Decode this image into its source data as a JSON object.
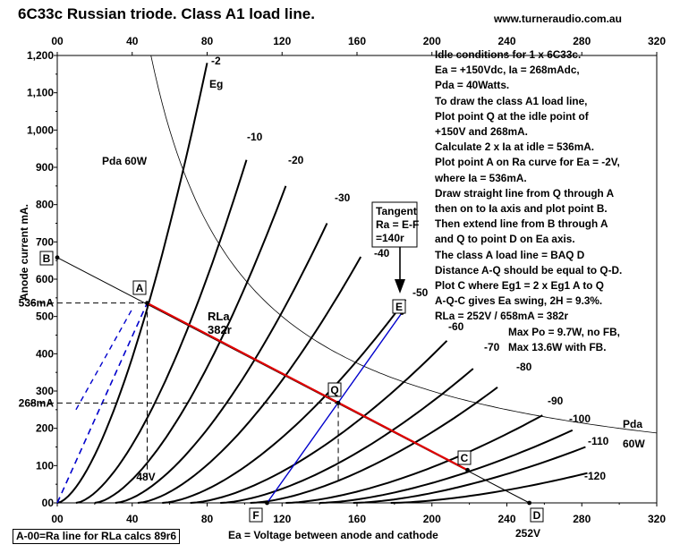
{
  "title": "6C33c Russian triode. Class A1 load line.",
  "website": "www.turneraudio.com.au",
  "footer_box": "A-00=Ra line for RLa calcs 89r6",
  "notes": [
    "Idle conditions for 1 x 6C33c.",
    "Ea = +150Vdc, Ia = 268mAdc,",
    "Pda = 40Watts.",
    "To draw the class A1 load line,",
    "Plot point Q at the idle point of",
    "+150V and 268mA.",
    "Calculate 2 x Ia at idle = 536mA.",
    "Plot point A on Ra curve for Ea = -2V,",
    "where Ia = 536mA.",
    "Draw straight line from Q through A",
    "then on to Ia axis and plot point B.",
    "Then extend line from B through A",
    "and Q to point D on Ea axis.",
    "The class A load line = BAQ D",
    "Distance A-Q should be equal to Q-D.",
    "Plot C where Eg1 = 2 x Eg1 A to Q",
    "A-Q-C gives Ea swing, 2H = 9.3%.",
    "RLa = 252V / 658mA = 382r",
    "Max Po = 9.7W, no FB,",
    "Max 13.6W with FB."
  ],
  "chart_data": {
    "type": "line",
    "title": "6C33c Russian triode. Class A1 load line.",
    "xlabel": "Ea = Voltage between anode and cathode",
    "ylabel": "Anode current mA.",
    "xlim": [
      0,
      320
    ],
    "ylim": [
      0,
      1200
    ],
    "x_ticks": [
      "0",
      "40",
      "80",
      "120",
      "160",
      "200",
      "240",
      "280",
      "320"
    ],
    "x_ticks_bottom": [
      "00",
      "40",
      "80",
      "120",
      "160",
      "200",
      "240",
      "280",
      "320"
    ],
    "x_ticks_top": [
      "00",
      "40",
      "80",
      "120",
      "160",
      "200",
      "240",
      "280",
      "320"
    ],
    "y_ticks": [
      "00",
      "100",
      "200",
      "300",
      "400",
      "500",
      "600",
      "700",
      "800",
      "900",
      "1,000",
      "1,100",
      "1,200"
    ],
    "grid": false,
    "grid_curves": [
      {
        "name": "-2",
        "x0": 0,
        "xe": 80
      },
      {
        "name": "-10",
        "x0": 10,
        "xe": 101
      },
      {
        "name": "-20",
        "x0": 20,
        "xe": 122
      },
      {
        "name": "-30",
        "x0": 31,
        "xe": 144
      },
      {
        "name": "-40",
        "x0": 43,
        "xe": 162
      },
      {
        "name": "-50",
        "x0": 56,
        "xe": 186
      },
      {
        "name": "-60",
        "x0": 71,
        "xe": 208
      },
      {
        "name": "-70",
        "x0": 87,
        "xe": 222
      },
      {
        "name": "-80",
        "x0": 103,
        "xe": 235
      },
      {
        "name": "-90",
        "x0": 122,
        "xe": 259
      },
      {
        "name": "-100",
        "x0": 140,
        "xe": 275
      },
      {
        "name": "-110",
        "x0": 158,
        "xe": 282
      },
      {
        "name": "-120",
        "x0": 178,
        "xe": 283
      }
    ],
    "curve_label_eg": "Eg",
    "power_curve": {
      "watts": 60,
      "label_top": "Pda    60W",
      "label_pda": "Pda",
      "label_w": "60W"
    },
    "load_line": {
      "name": "RLa",
      "value": "382r",
      "from": [
        0,
        658
      ],
      "to": [
        252,
        0
      ]
    },
    "points": [
      {
        "label": "A",
        "x": 48,
        "y": 536
      },
      {
        "label": "Q",
        "x": 150,
        "y": 268
      },
      {
        "label": "C",
        "x": 219,
        "y": 88
      },
      {
        "label": "B",
        "x": 0,
        "y": 658
      },
      {
        "label": "D",
        "x": 252,
        "y": 0
      },
      {
        "label": "E",
        "x": 184,
        "y": 510
      },
      {
        "label": "F",
        "x": 112,
        "y": 0
      }
    ],
    "tangent_line": {
      "from": [
        112,
        0
      ],
      "to": [
        184,
        510
      ]
    },
    "ra_dashed": {
      "from": [
        0,
        0
      ],
      "to": [
        48,
        536
      ]
    },
    "annotations": {
      "tangent": [
        "Tangent",
        "Ra = E-F",
        "=140r"
      ],
      "y_536": "536mA",
      "y_268": "268mA",
      "v_48": "48V",
      "v_252": "252V"
    },
    "colors": {
      "load_line": "#e00000",
      "tangent": "#0000cc",
      "curves": "#000000"
    }
  }
}
